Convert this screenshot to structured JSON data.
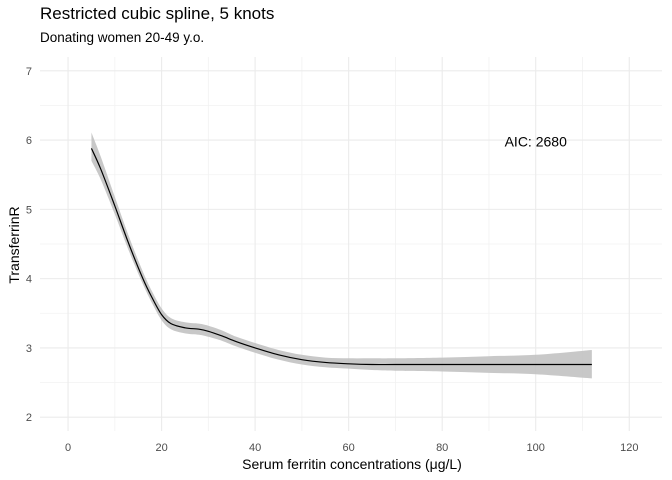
{
  "chart_data": {
    "type": "line",
    "title": "Restricted cubic spline, 5 knots",
    "subtitle": "Donating women 20-49 y.o.",
    "xlabel": "Serum ferritin concentrations (μg/L)",
    "ylabel": "TransferrinR",
    "xlim": [
      -6,
      127
    ],
    "ylim": [
      1.8,
      7.2
    ],
    "xticks": [
      0,
      20,
      40,
      60,
      80,
      100,
      120
    ],
    "yticks": [
      2,
      3,
      4,
      5,
      6,
      7
    ],
    "grid": true,
    "annotation": {
      "text": "AIC: 2680",
      "x": 100,
      "y": 5.98
    },
    "series": [
      {
        "x": [
          5,
          7,
          10,
          13,
          16,
          18,
          20,
          22,
          25,
          28,
          30,
          33,
          36,
          40,
          45,
          50,
          55,
          60,
          65,
          70,
          80,
          90,
          100,
          112
        ],
        "y": [
          5.88,
          5.58,
          5.05,
          4.5,
          4.0,
          3.72,
          3.48,
          3.35,
          3.29,
          3.27,
          3.24,
          3.17,
          3.09,
          3.0,
          2.9,
          2.83,
          2.79,
          2.77,
          2.76,
          2.76,
          2.76,
          2.76,
          2.76,
          2.76
        ],
        "lower": [
          5.7,
          5.43,
          4.93,
          4.4,
          3.92,
          3.64,
          3.4,
          3.27,
          3.21,
          3.19,
          3.16,
          3.1,
          3.02,
          2.93,
          2.83,
          2.76,
          2.72,
          2.7,
          2.68,
          2.67,
          2.66,
          2.64,
          2.62,
          2.56
        ],
        "upper": [
          6.11,
          5.76,
          5.18,
          4.61,
          4.1,
          3.81,
          3.57,
          3.43,
          3.37,
          3.35,
          3.32,
          3.25,
          3.16,
          3.07,
          2.97,
          2.9,
          2.86,
          2.85,
          2.85,
          2.85,
          2.86,
          2.88,
          2.9,
          2.97
        ],
        "line_color": "#000000",
        "band_color": "#bebebe"
      }
    ]
  }
}
